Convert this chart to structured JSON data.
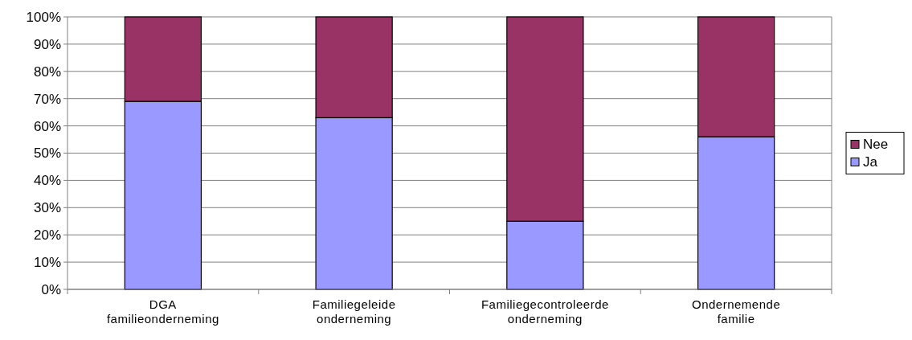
{
  "chart_data": {
    "type": "bar",
    "stacked": true,
    "categories": [
      "DGA familieonderneming",
      "Familiegeleide onderneming",
      "Familiegecontroleerde onderneming",
      "Ondernemende familie"
    ],
    "series": [
      {
        "name": "Ja",
        "color": "#9999ff",
        "values": [
          69,
          63,
          25,
          56
        ]
      },
      {
        "name": "Nee",
        "color": "#993366",
        "values": [
          31,
          37,
          75,
          44
        ]
      }
    ],
    "ylim": [
      0,
      100
    ],
    "yticks": [
      {
        "value": 0,
        "label": "0%"
      },
      {
        "value": 10,
        "label": "10%"
      },
      {
        "value": 20,
        "label": "20%"
      },
      {
        "value": 30,
        "label": "30%"
      },
      {
        "value": 40,
        "label": "40%"
      },
      {
        "value": 50,
        "label": "50%"
      },
      {
        "value": 60,
        "label": "60%"
      },
      {
        "value": 70,
        "label": "70%"
      },
      {
        "value": 80,
        "label": "80%"
      },
      {
        "value": 90,
        "label": "90%"
      },
      {
        "value": 100,
        "label": "100%"
      }
    ],
    "grid": "y",
    "legend": "right"
  }
}
